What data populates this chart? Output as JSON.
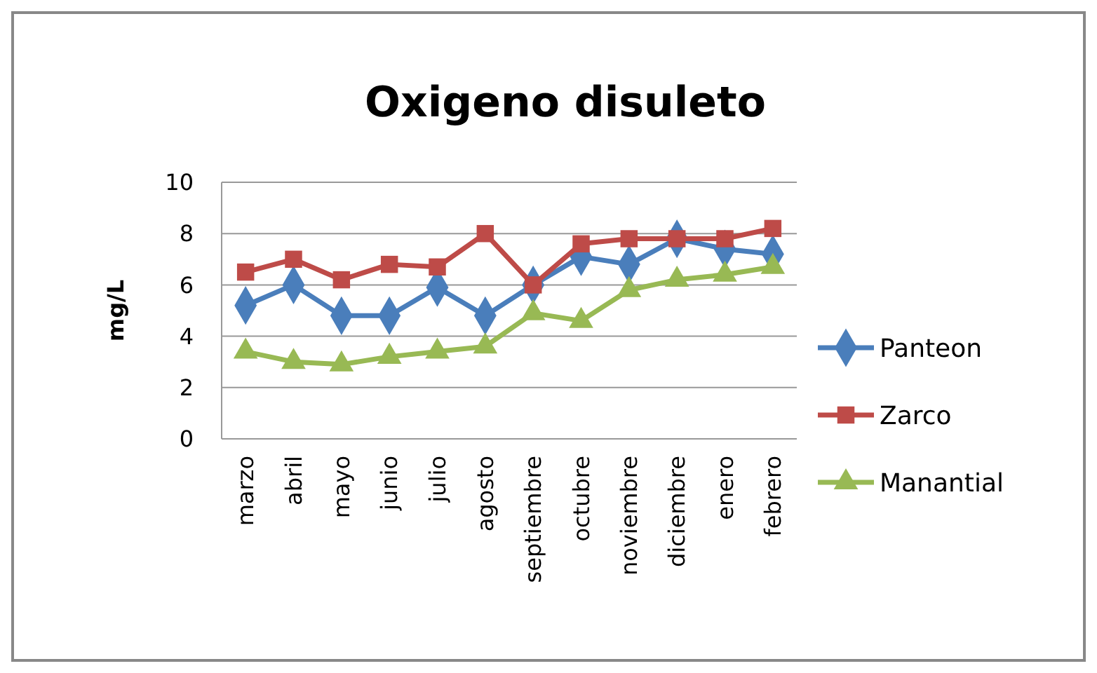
{
  "chart_data": {
    "type": "line",
    "title": "Oxigeno disuleto",
    "ylabel": "mg/L",
    "categories": [
      "marzo",
      "abril",
      "mayo",
      "junio",
      "julio",
      "agosto",
      "septiembre",
      "octubre",
      "noviembre",
      "diciembre",
      "enero",
      "febrero"
    ],
    "series": [
      {
        "name": "Panteon",
        "color": "#4a7ebb",
        "marker": "diamond",
        "values": [
          5.2,
          6.0,
          4.8,
          4.8,
          5.9,
          4.8,
          6.0,
          7.1,
          6.8,
          7.8,
          7.4,
          7.2
        ]
      },
      {
        "name": "Zarco",
        "color": "#be4b48",
        "marker": "square",
        "values": [
          6.5,
          7.0,
          6.2,
          6.8,
          6.7,
          8.0,
          6.0,
          7.6,
          7.8,
          7.8,
          7.8,
          8.2
        ]
      },
      {
        "name": "Manantial",
        "color": "#98b954",
        "marker": "triangle",
        "values": [
          3.4,
          3.0,
          2.9,
          3.2,
          3.4,
          3.6,
          4.9,
          4.6,
          5.8,
          6.2,
          6.4,
          6.7
        ]
      }
    ],
    "ylim": [
      0,
      10
    ],
    "yticks": [
      0,
      2,
      4,
      6,
      8,
      10
    ],
    "grid": "y",
    "legend": "right"
  }
}
